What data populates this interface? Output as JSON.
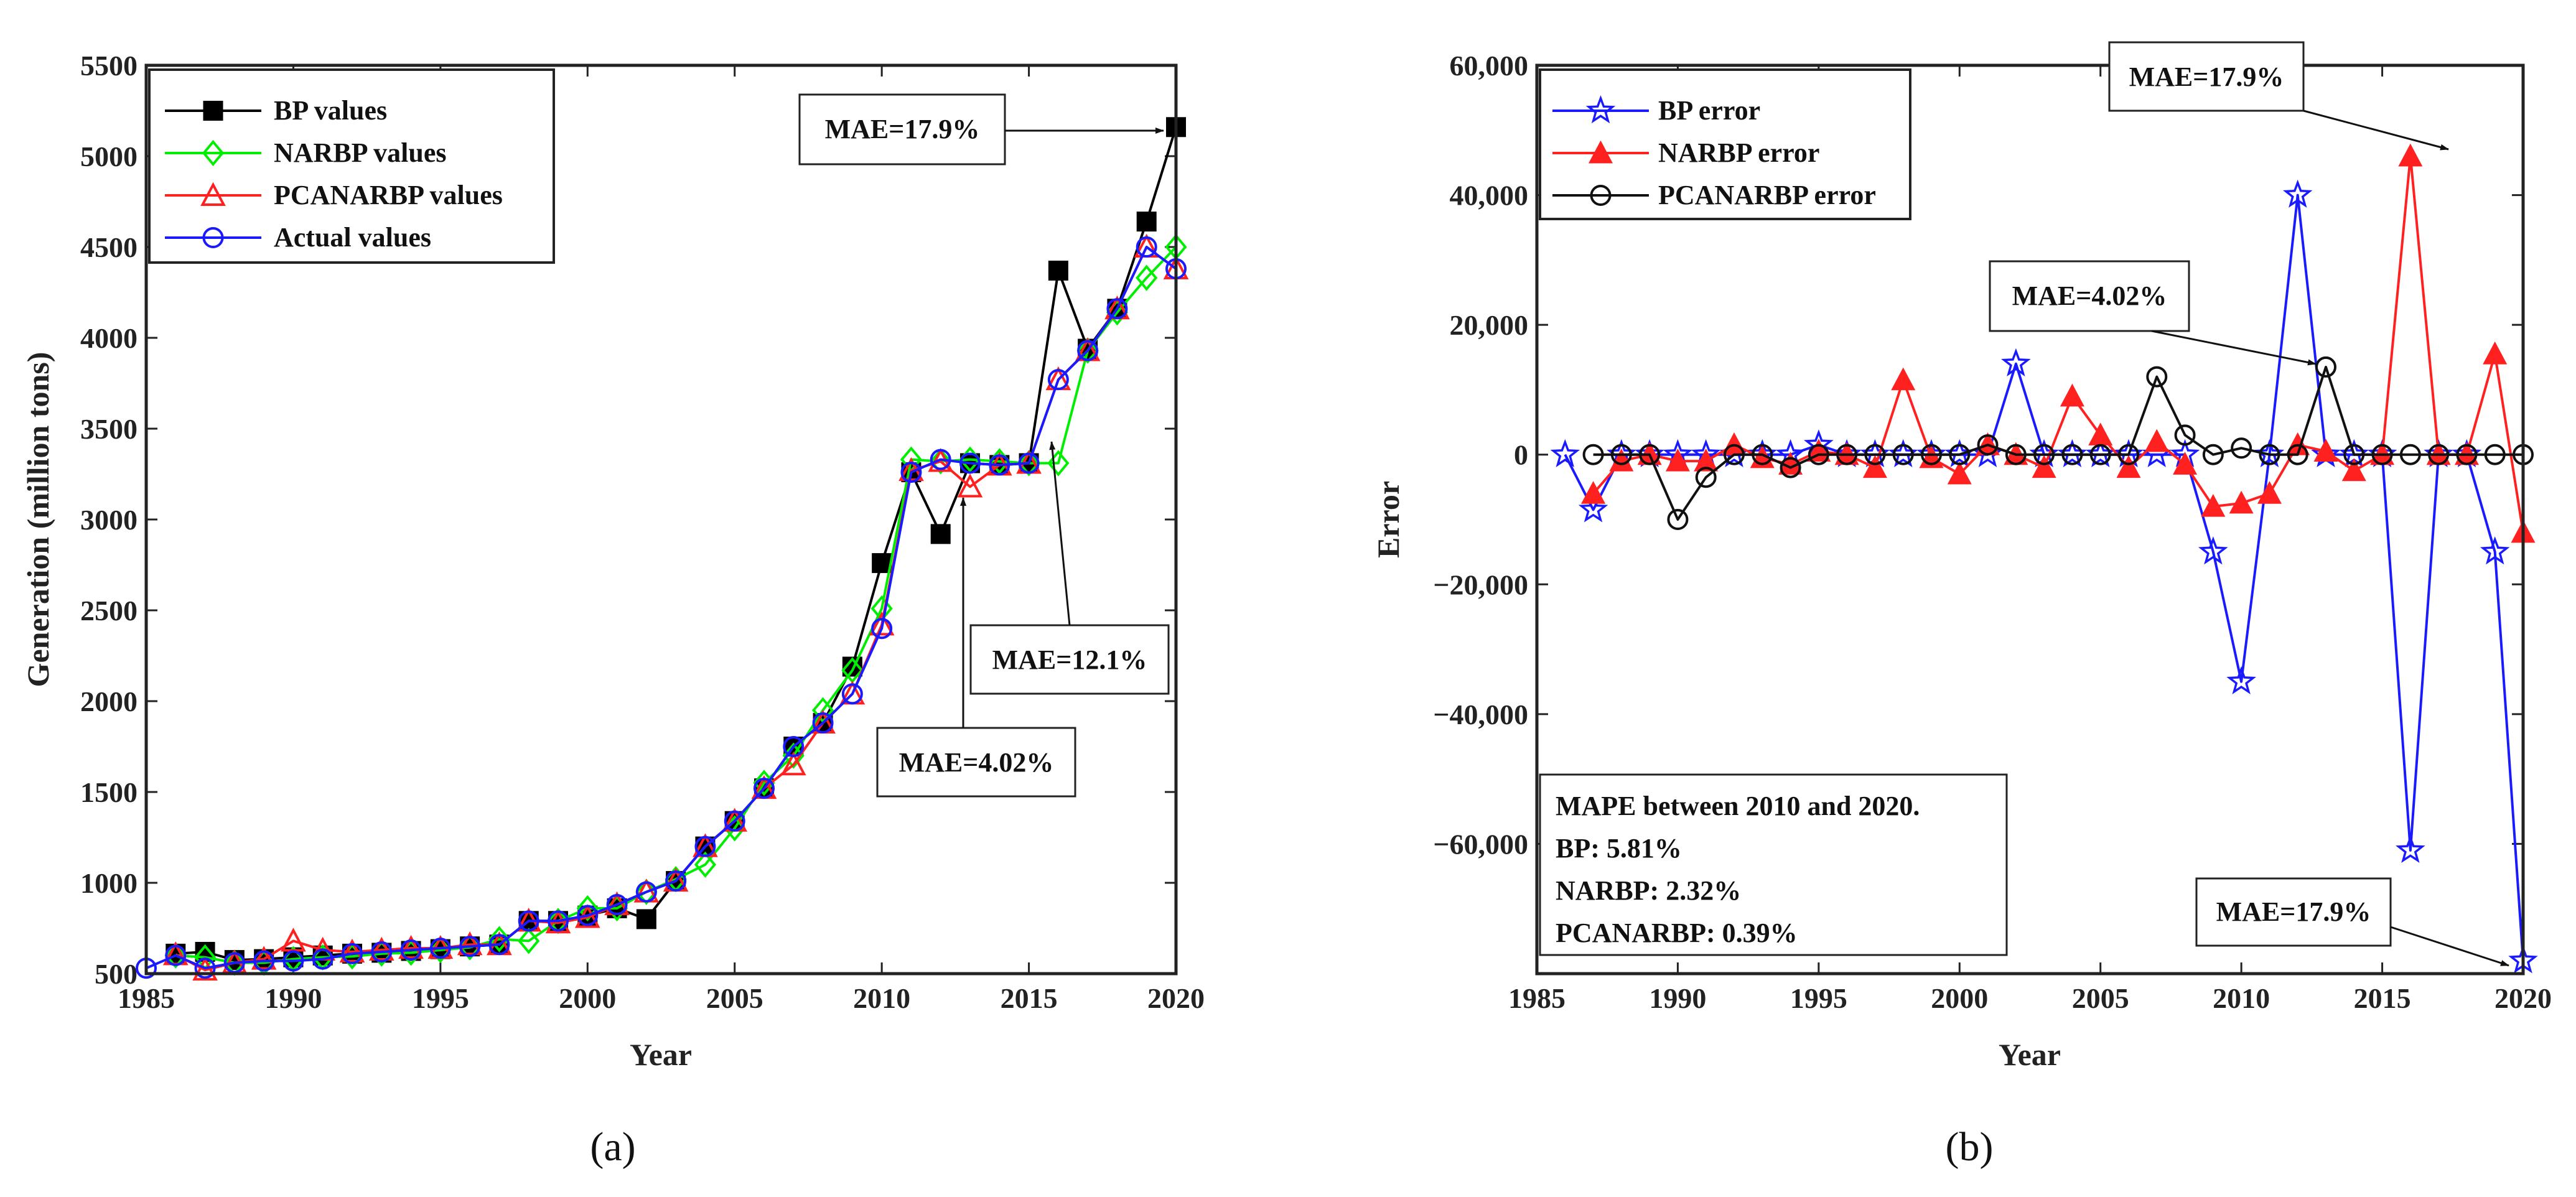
{
  "chart_data": [
    {
      "type": "line",
      "panel_label": "a",
      "xlabel": "Year",
      "ylabel": "Generation (million tons)",
      "xlim": [
        1985,
        2020
      ],
      "ylim": [
        500,
        5500
      ],
      "xticks": [
        1985,
        1990,
        1995,
        2000,
        2005,
        2010,
        2015,
        2020
      ],
      "yticks": [
        500,
        1000,
        1500,
        2000,
        2500,
        3000,
        3500,
        4000,
        4500,
        5000,
        5500
      ],
      "x": [
        1985,
        1986,
        1987,
        1988,
        1989,
        1990,
        1991,
        1992,
        1993,
        1994,
        1995,
        1996,
        1997,
        1998,
        1999,
        2000,
        2001,
        2002,
        2003,
        2004,
        2005,
        2006,
        2007,
        2008,
        2009,
        2010,
        2011,
        2012,
        2013,
        2014,
        2015,
        2016,
        2017,
        2018,
        2019,
        2020
      ],
      "legend_position": "top-left",
      "series": [
        {
          "name": "BP values",
          "color": "#000000",
          "marker": "square",
          "values": [
            null,
            610,
            620,
            575,
            580,
            590,
            600,
            610,
            615,
            625,
            635,
            650,
            660,
            790,
            790,
            820,
            860,
            800,
            1010,
            1200,
            1340,
            1520,
            1750,
            1880,
            2190,
            2760,
            3260,
            2920,
            3310,
            3300,
            3310,
            4370,
            3940,
            4160,
            4640,
            5160
          ]
        },
        {
          "name": "NARBP values",
          "color": "#00ee00",
          "marker": "diamond",
          "values": [
            null,
            600,
            590,
            560,
            560,
            580,
            590,
            595,
            610,
            615,
            630,
            645,
            690,
            680,
            790,
            860,
            860,
            950,
            1020,
            1100,
            1300,
            1550,
            1700,
            1950,
            2170,
            2510,
            3330,
            3320,
            3330,
            3320,
            3310,
            3310,
            3930,
            4140,
            4330,
            4500
          ]
        },
        {
          "name": "PCANARBP values",
          "color": "#ff2020",
          "marker": "triangle",
          "values": [
            null,
            605,
            520,
            560,
            580,
            680,
            630,
            620,
            630,
            640,
            640,
            660,
            660,
            790,
            780,
            810,
            880,
            950,
            1010,
            1200,
            1340,
            1520,
            1650,
            1880,
            2040,
            2420,
            3270,
            3320,
            3180,
            3300,
            3310,
            3770,
            3930,
            4160,
            4500,
            4380
          ]
        },
        {
          "name": "Actual values",
          "color": "#1a1aff",
          "marker": "circle",
          "values": [
            530,
            600,
            530,
            560,
            570,
            570,
            580,
            610,
            620,
            630,
            640,
            650,
            660,
            790,
            790,
            820,
            880,
            950,
            1010,
            1200,
            1340,
            1520,
            1750,
            1880,
            2040,
            2400,
            3260,
            3330,
            3310,
            3300,
            3310,
            3770,
            3930,
            4160,
            4500,
            4380
          ]
        }
      ],
      "annotations": [
        "MAE=17.9%",
        "MAE=12.1%",
        "MAE=4.02%"
      ]
    },
    {
      "type": "line",
      "panel_label": "b",
      "xlabel": "Year",
      "ylabel": "Error",
      "xlim": [
        1985,
        2020
      ],
      "ylim": [
        -80000,
        60000
      ],
      "xticks": [
        1985,
        1990,
        1995,
        2000,
        2005,
        2010,
        2015,
        2020
      ],
      "yticks": [
        -60000,
        -40000,
        -20000,
        0,
        20000,
        40000,
        60000
      ],
      "ytick_labels": [
        "−60,000",
        "−40,000",
        "−20,000",
        "0",
        "20,000",
        "40,000",
        "60,000"
      ],
      "x": [
        1986,
        1987,
        1988,
        1989,
        1990,
        1991,
        1992,
        1993,
        1994,
        1995,
        1996,
        1997,
        1998,
        1999,
        2000,
        2001,
        2002,
        2003,
        2004,
        2005,
        2006,
        2007,
        2008,
        2009,
        2010,
        2011,
        2012,
        2013,
        2014,
        2015,
        2016,
        2017,
        2018,
        2019,
        2020
      ],
      "legend_position": "top-left",
      "series": [
        {
          "name": "BP error",
          "color": "#1a1aff",
          "marker": "star",
          "values": [
            0,
            -8500,
            0,
            0,
            0,
            0,
            0,
            0,
            0,
            1500,
            0,
            0,
            0,
            0,
            0,
            0,
            14000,
            0,
            0,
            0,
            0,
            0,
            0,
            -15000,
            -35000,
            0,
            40000,
            0,
            0,
            0,
            -61000,
            0,
            0,
            -15000,
            -78000
          ]
        },
        {
          "name": "NARBP error",
          "color": "#ff2020",
          "marker": "triangle",
          "values": [
            null,
            -6000,
            -1000,
            0,
            -1000,
            -1000,
            1500,
            -500,
            -1500,
            500,
            0,
            -2000,
            11500,
            -500,
            -3000,
            1500,
            0,
            -2000,
            9000,
            3000,
            -2000,
            2000,
            -1500,
            -8000,
            -7500,
            -6000,
            1500,
            500,
            -2500,
            0,
            46000,
            0,
            0,
            15500,
            -12000
          ]
        },
        {
          "name": "PCANARBP error",
          "color": "#111111",
          "marker": "circle",
          "values": [
            null,
            0,
            0,
            0,
            -10000,
            -3500,
            0,
            0,
            -2000,
            0,
            0,
            0,
            0,
            0,
            0,
            1500,
            0,
            0,
            0,
            0,
            0,
            12000,
            3000,
            0,
            1000,
            0,
            0,
            13500,
            0,
            0,
            0,
            0,
            0,
            0,
            0
          ]
        }
      ],
      "textbox": {
        "line1": "MAPE between 2010 and 2020.",
        "line2": "BP: 5.81%",
        "line3": "NARBP: 2.32%",
        "line4": "PCANARBP: 0.39%"
      },
      "annotations": [
        "MAE=17.9%",
        "MAE=4.02%",
        "MAE=17.9%"
      ]
    }
  ],
  "captions": {
    "a": "(a)",
    "b": "(b)"
  }
}
